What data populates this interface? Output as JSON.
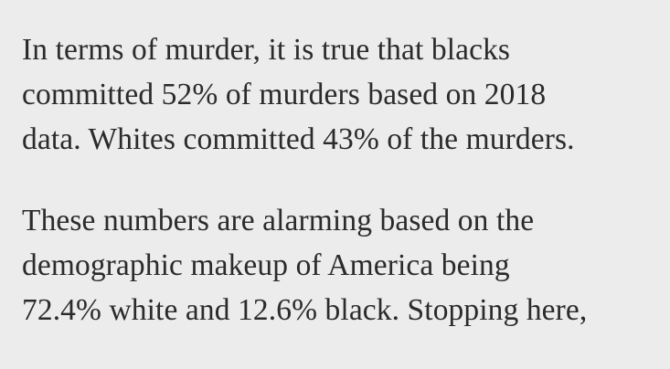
{
  "article": {
    "paragraphs": [
      {
        "lines": [
          "In terms of murder, it is true that blacks",
          "committed 52% of murders based on 2018",
          "data. Whites committed 43% of the murders."
        ]
      },
      {
        "lines": [
          "These numbers are alarming based on the",
          "demographic makeup of America being",
          "72.4% white and 12.6% black. Stopping here,"
        ]
      }
    ]
  }
}
